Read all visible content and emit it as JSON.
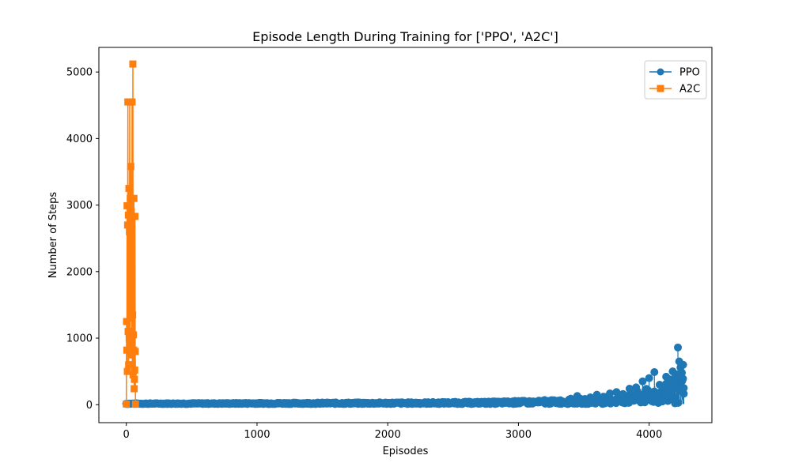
{
  "chart_data": {
    "type": "line",
    "title": "Episode Length During Training for ['PPO', 'A2C']",
    "xlabel": "Episodes",
    "ylabel": "Number of Steps",
    "xlim": [
      -210,
      4480
    ],
    "ylim": [
      -270,
      5370
    ],
    "xticks": [
      0,
      1000,
      2000,
      3000,
      4000
    ],
    "yticks": [
      0,
      1000,
      2000,
      3000,
      4000,
      5000
    ],
    "xtick_labels": [
      "0",
      "1000",
      "2000",
      "3000",
      "4000"
    ],
    "ytick_labels": [
      "0",
      "1000",
      "2000",
      "3000",
      "4000",
      "5000"
    ],
    "grid": false,
    "legend": "top-right",
    "colors": {
      "PPO": "#1f77b4",
      "A2C": "#ff7f0e"
    },
    "series": [
      {
        "name": "PPO",
        "marker": "circle",
        "x": [
          0,
          200,
          400,
          600,
          800,
          1000,
          1200,
          1400,
          1600,
          1800,
          2000,
          2200,
          2400,
          2600,
          2800,
          3000,
          3100,
          3200,
          3300,
          3400,
          3450,
          3500,
          3550,
          3600,
          3650,
          3700,
          3750,
          3800,
          3850,
          3900,
          3950,
          4000,
          4040,
          4080,
          4100,
          4130,
          4160,
          4180,
          4200,
          4210,
          4220,
          4230,
          4240,
          4250,
          4260,
          4265
        ],
        "y": [
          12,
          15,
          14,
          16,
          15,
          18,
          16,
          20,
          19,
          22,
          20,
          25,
          26,
          30,
          35,
          55,
          40,
          70,
          60,
          90,
          130,
          80,
          110,
          150,
          120,
          170,
          190,
          160,
          240,
          260,
          350,
          400,
          490,
          300,
          280,
          420,
          380,
          500,
          460,
          380,
          860,
          650,
          560,
          480,
          600,
          250
        ],
        "dense_band_max": [
          15,
          18,
          20,
          22,
          24,
          28,
          30,
          32,
          34,
          36,
          38,
          40,
          45,
          50,
          55,
          70,
          70,
          80,
          90,
          100,
          120,
          110,
          120,
          140,
          150,
          160,
          180,
          190,
          220,
          260,
          300,
          350,
          380,
          400,
          420,
          440,
          460,
          480,
          500,
          520,
          540,
          560,
          580,
          600,
          580,
          560
        ]
      },
      {
        "name": "A2C",
        "marker": "square",
        "x": [
          0,
          2,
          4,
          6,
          8,
          10,
          12,
          14,
          16,
          18,
          20,
          22,
          24,
          26,
          28,
          30,
          32,
          34,
          36,
          38,
          40,
          42,
          44,
          46,
          48,
          50,
          52,
          54,
          56,
          58,
          60,
          62,
          64,
          66,
          68,
          70
        ],
        "y": [
          10,
          1250,
          820,
          2990,
          500,
          2700,
          4550,
          1100,
          2850,
          600,
          3250,
          1000,
          2600,
          4550,
          900,
          3100,
          2000,
          3580,
          1300,
          2900,
          1550,
          750,
          4550,
          600,
          1350,
          5120,
          450,
          1050,
          820,
          3100,
          240,
          380,
          520,
          2830,
          800,
          10
        ]
      }
    ]
  }
}
